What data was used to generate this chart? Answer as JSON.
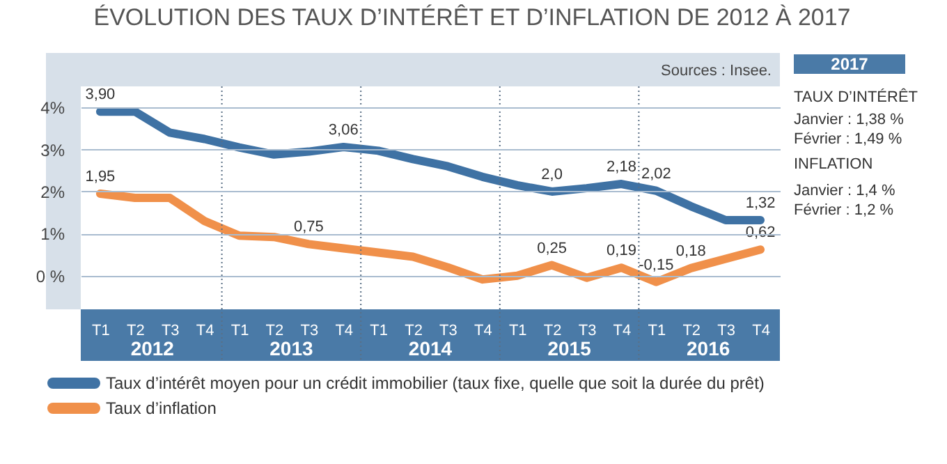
{
  "chart_data": {
    "type": "line",
    "title": "ÉVOLUTION DES TAUX D’INTÉRÊT ET D’INFLATION DE 2012 À 2017",
    "categories": [
      "T1",
      "T2",
      "T3",
      "T4",
      "T1",
      "T2",
      "T3",
      "T4",
      "T1",
      "T2",
      "T3",
      "T4",
      "T1",
      "T2",
      "T3",
      "T4",
      "T1",
      "T2",
      "T3",
      "T4"
    ],
    "series": [
      {
        "name": "Taux d’intérêt moyen pour un crédit immobilier (taux fixe, quelle que soit la durée du prêt)",
        "color": "#3f72a4",
        "values": [
          3.9,
          3.9,
          3.4,
          3.25,
          3.05,
          2.88,
          2.95,
          3.06,
          2.97,
          2.77,
          2.6,
          2.35,
          2.15,
          2.0,
          2.08,
          2.18,
          2.02,
          1.65,
          1.32,
          1.32
        ],
        "value_labels": [
          "3,90",
          null,
          null,
          null,
          null,
          null,
          null,
          "3,06",
          null,
          null,
          null,
          null,
          null,
          "2,0",
          null,
          "2,18",
          "2,02",
          null,
          null,
          "1,32"
        ]
      },
      {
        "name": "Taux d’inflation",
        "color": "#f0904a",
        "values": [
          1.95,
          1.85,
          1.85,
          1.3,
          0.95,
          0.92,
          0.75,
          0.65,
          0.55,
          0.45,
          0.2,
          -0.09,
          0.0,
          0.25,
          -0.05,
          0.19,
          -0.15,
          0.18,
          0.4,
          0.62
        ],
        "value_labels": [
          "1,95",
          null,
          null,
          null,
          null,
          null,
          "0,75",
          null,
          null,
          null,
          null,
          null,
          null,
          "0,25",
          null,
          "0,19",
          "-0,15",
          "0,18",
          null,
          "0,62"
        ]
      }
    ],
    "ylim": [
      -0.8,
      4.5
    ],
    "yticks": [
      {
        "value": 4,
        "label": "4%"
      },
      {
        "value": 3,
        "label": "3%"
      },
      {
        "value": 2,
        "label": "2%"
      },
      {
        "value": 1,
        "label": "1%"
      },
      {
        "value": 0,
        "label": "0 %"
      }
    ],
    "grid": "y",
    "legend": "bottom",
    "annotations": [
      "Sources : Insee.",
      "2012",
      "2013",
      "2014",
      "2015",
      "2016",
      "2017",
      "TAUX D’INTÉRÊT",
      "Janvier : 1,38 %",
      "Février : 1,49 %",
      "INFLATION",
      "Janvier : 1,4 %",
      "Février : 1,2 %"
    ]
  }
}
